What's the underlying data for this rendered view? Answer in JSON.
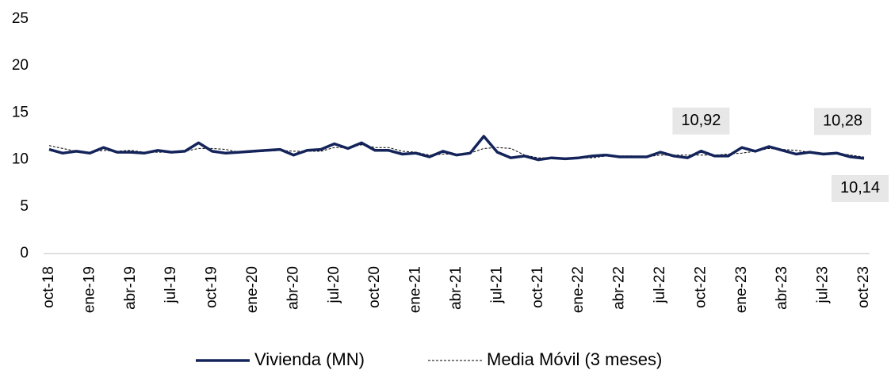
{
  "chart_data": {
    "type": "line",
    "categories": [
      "oct-18",
      null,
      null,
      "ene-19",
      null,
      null,
      "abr-19",
      null,
      null,
      "jul-19",
      null,
      null,
      "oct-19",
      null,
      null,
      "ene-20",
      null,
      null,
      "abr-20",
      null,
      null,
      "jul-20",
      null,
      null,
      "oct-20",
      null,
      null,
      "ene-21",
      null,
      null,
      "abr-21",
      null,
      null,
      "jul-21",
      null,
      null,
      "oct-21",
      null,
      null,
      "ene-22",
      null,
      null,
      "abr-22",
      null,
      null,
      "jul-22",
      null,
      null,
      "oct-22",
      null,
      null,
      "ene-23",
      null,
      null,
      "abr-23",
      null,
      null,
      "jul-23",
      null,
      null,
      "oct-23"
    ],
    "series": [
      {
        "name": "Vivienda (MN)",
        "color": "#14245a",
        "dashed": false,
        "values": [
          11.1,
          10.7,
          10.9,
          10.7,
          11.3,
          10.8,
          10.8,
          10.7,
          11.0,
          10.8,
          10.9,
          11.8,
          10.9,
          10.7,
          10.8,
          10.9,
          11.0,
          11.1,
          10.5,
          11.0,
          11.1,
          11.7,
          11.2,
          11.8,
          11.0,
          11.0,
          10.6,
          10.7,
          10.3,
          10.9,
          10.5,
          10.7,
          12.5,
          10.8,
          10.2,
          10.4,
          10.0,
          10.2,
          10.1,
          10.2,
          10.4,
          10.5,
          10.3,
          10.3,
          10.3,
          10.8,
          10.4,
          10.2,
          10.92,
          10.4,
          10.4,
          11.3,
          10.9,
          11.4,
          11.0,
          10.6,
          10.8,
          10.6,
          10.7,
          10.3,
          10.14
        ],
        "value_labels": [
          null,
          null,
          null,
          null,
          null,
          null,
          null,
          null,
          null,
          null,
          null,
          null,
          null,
          null,
          null,
          null,
          null,
          null,
          null,
          null,
          null,
          null,
          null,
          null,
          null,
          null,
          null,
          null,
          null,
          null,
          null,
          null,
          null,
          null,
          null,
          null,
          null,
          null,
          null,
          null,
          null,
          null,
          null,
          null,
          null,
          null,
          null,
          null,
          "10,92",
          null,
          null,
          null,
          null,
          null,
          null,
          null,
          null,
          null,
          null,
          null,
          "10,14"
        ]
      },
      {
        "name": "Media Móvil (3 meses)",
        "color": "#000000",
        "dashed": true,
        "values": [
          11.5,
          11.2,
          10.9,
          10.8,
          11.0,
          10.9,
          11.0,
          10.8,
          10.8,
          10.8,
          10.9,
          11.2,
          11.2,
          11.1,
          10.8,
          10.8,
          10.9,
          11.0,
          10.9,
          10.9,
          10.9,
          11.3,
          11.3,
          11.6,
          11.3,
          11.3,
          10.9,
          10.8,
          10.5,
          10.6,
          10.6,
          10.7,
          11.2,
          11.3,
          11.2,
          10.5,
          10.2,
          10.2,
          10.1,
          10.2,
          10.2,
          10.4,
          10.4,
          10.4,
          10.3,
          10.5,
          10.5,
          10.5,
          10.5,
          10.5,
          10.6,
          10.7,
          10.9,
          11.2,
          11.1,
          11.0,
          10.8,
          10.7,
          10.7,
          10.5,
          10.28
        ],
        "value_labels": [
          null,
          null,
          null,
          null,
          null,
          null,
          null,
          null,
          null,
          null,
          null,
          null,
          null,
          null,
          null,
          null,
          null,
          null,
          null,
          null,
          null,
          null,
          null,
          null,
          null,
          null,
          null,
          null,
          null,
          null,
          null,
          null,
          null,
          null,
          null,
          null,
          null,
          null,
          null,
          null,
          null,
          null,
          null,
          null,
          null,
          null,
          null,
          null,
          null,
          null,
          null,
          null,
          null,
          null,
          null,
          null,
          null,
          null,
          null,
          null,
          "10,28"
        ]
      }
    ],
    "ylim": [
      0,
      25
    ],
    "yticks": [
      0,
      5,
      10,
      15,
      20,
      25
    ],
    "grid": false,
    "legend": "bottom"
  }
}
